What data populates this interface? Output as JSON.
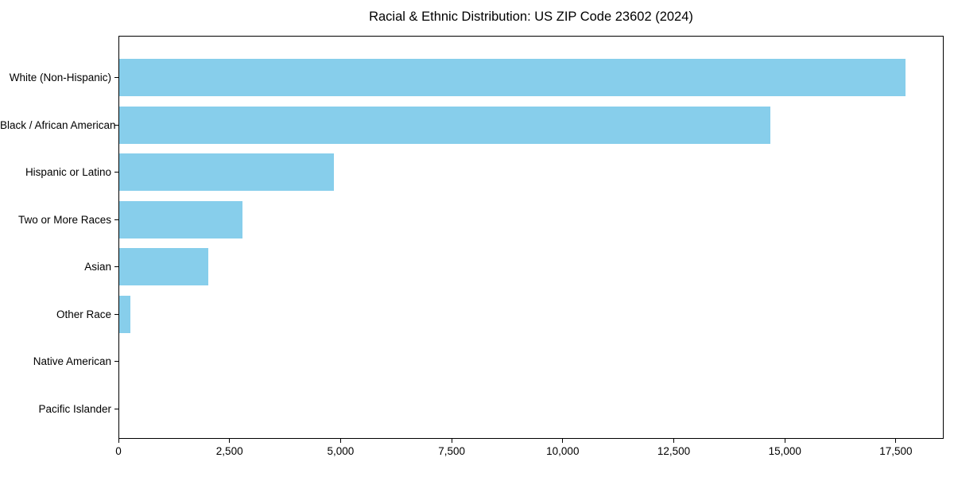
{
  "chart_data": {
    "type": "bar",
    "orientation": "horizontal",
    "title": "Racial & Ethnic Distribution: US ZIP Code 23602 (2024)",
    "xlabel": "",
    "ylabel": "",
    "categories": [
      "White (Non-Hispanic)",
      "Black / African American",
      "Hispanic or Latino",
      "Two or More Races",
      "Asian",
      "Other Race",
      "Native American",
      "Pacific Islander"
    ],
    "values": [
      17700,
      14650,
      4840,
      2780,
      2000,
      250,
      0,
      0
    ],
    "xlim": [
      0,
      18575
    ],
    "xticks": [
      0,
      2500,
      5000,
      7500,
      10000,
      12500,
      15000,
      17500
    ],
    "xtick_labels": [
      "0",
      "2,500",
      "5,000",
      "7,500",
      "10,000",
      "12,500",
      "15,000",
      "17,500"
    ],
    "bar_color": "#87CEEB",
    "axis_color": "#000000",
    "grid": false,
    "legend": null
  }
}
